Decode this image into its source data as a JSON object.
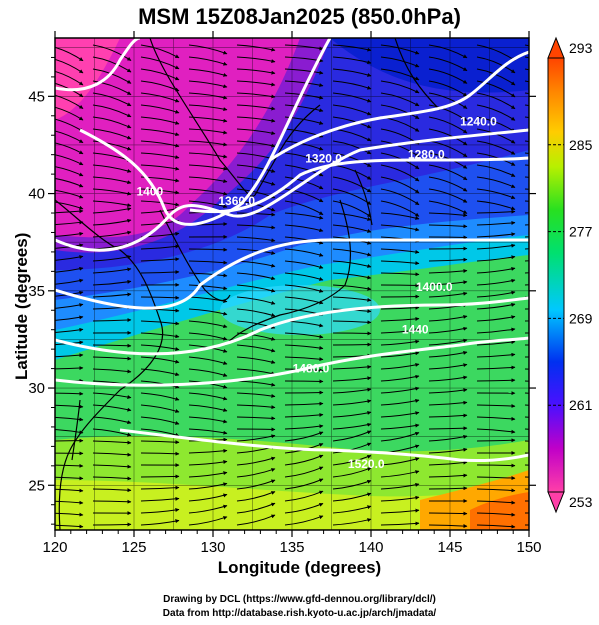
{
  "title": "MSM 15Z08Jan2025 (850.0hPa)",
  "xlabel": "Longitude (degrees)",
  "ylabel": "Latitude  (degrees)",
  "x_ticks": [
    "120",
    "125",
    "130",
    "135",
    "140",
    "145",
    "150"
  ],
  "y_ticks": [
    "25",
    "30",
    "35",
    "40",
    "45"
  ],
  "x_tick_values": [
    120,
    125,
    130,
    135,
    140,
    145,
    150
  ],
  "y_tick_values": [
    25,
    30,
    35,
    40,
    45
  ],
  "lon_range": [
    120,
    150
  ],
  "lat_range": [
    22.7,
    48
  ],
  "colorbar": {
    "labels": [
      "293",
      "285",
      "277",
      "269",
      "261",
      "253"
    ],
    "values": [
      293,
      285,
      277,
      269,
      261,
      253
    ],
    "range": [
      253,
      293
    ]
  },
  "contour_labels": [
    {
      "text": "1240.0",
      "lon": 146.8,
      "lat": 43.5
    },
    {
      "text": "1280.0",
      "lon": 143.5,
      "lat": 41.8
    },
    {
      "text": "1320.0",
      "lon": 137.0,
      "lat": 41.6
    },
    {
      "text": "1360.0",
      "lon": 131.5,
      "lat": 39.4
    },
    {
      "text": "1400",
      "lon": 126.0,
      "lat": 39.9
    },
    {
      "text": "1440",
      "lon": 142.8,
      "lat": 32.8
    },
    {
      "text": "1480.0",
      "lon": 136.2,
      "lat": 30.8
    },
    {
      "text": "1520.0",
      "lon": 139.7,
      "lat": 25.9
    },
    {
      "text": "1400.0",
      "lon": 144.0,
      "lat": 35.0
    }
  ],
  "credits": {
    "line1": "Drawing by DCL (https://www.gfd-dennou.org/library/dcl/)",
    "line2": "Data from http://database.rish.kyoto-u.ac.jp/arch/jmadata/"
  }
}
